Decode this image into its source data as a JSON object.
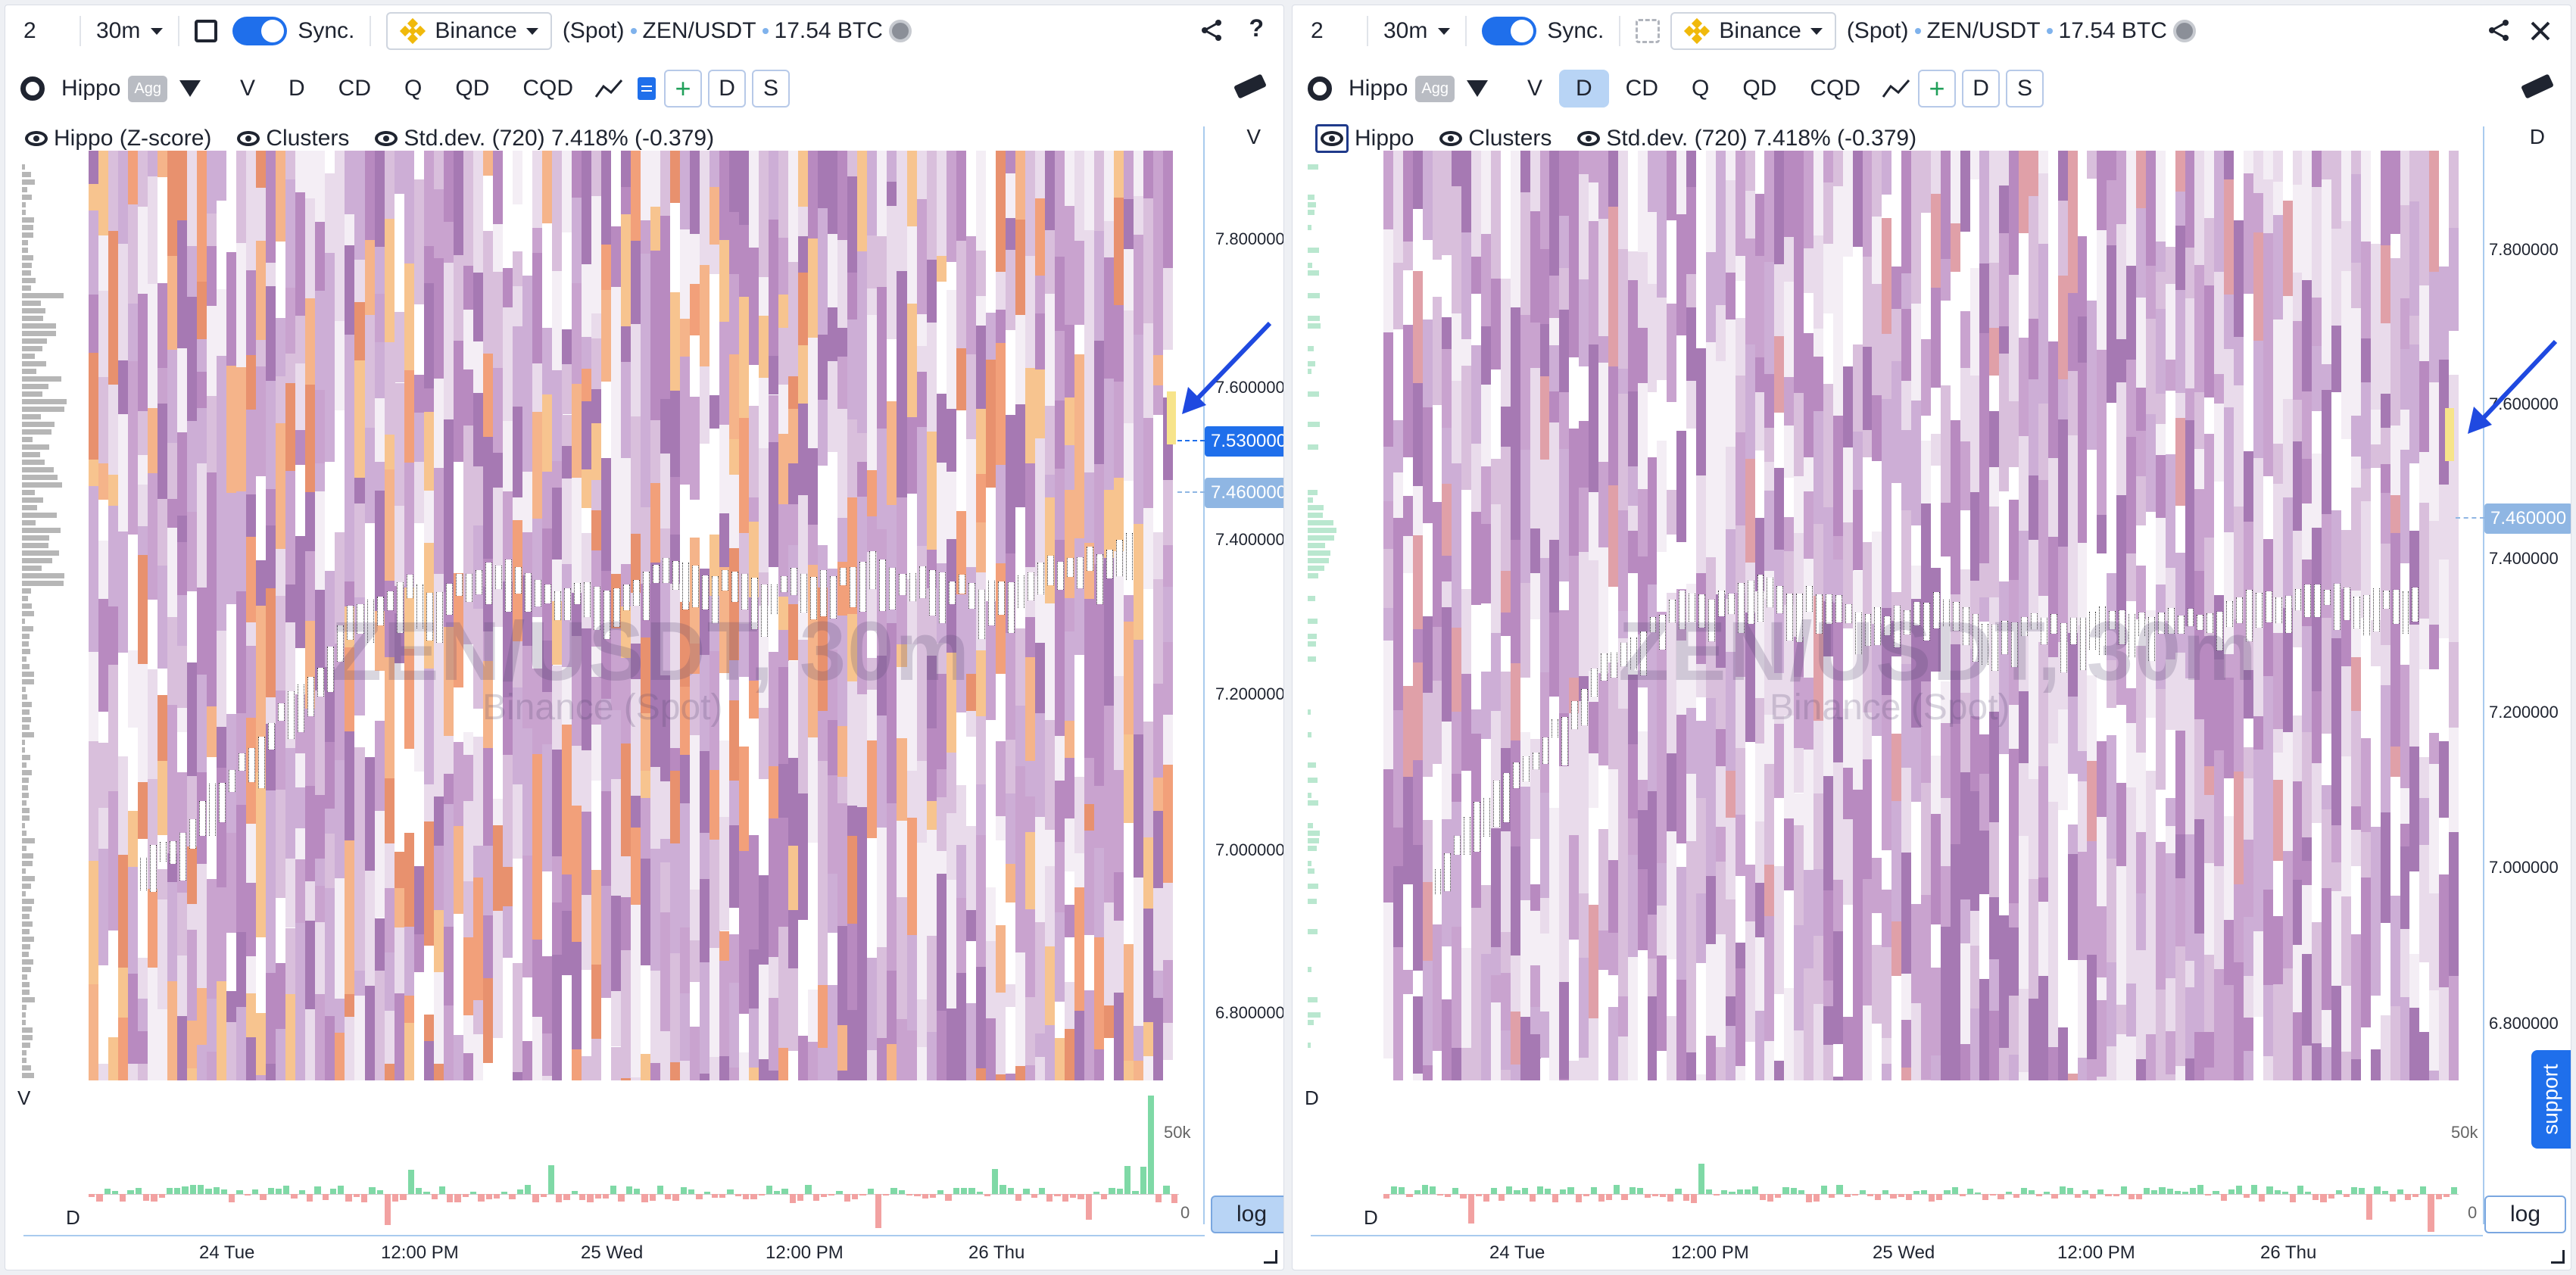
{
  "colors": {
    "accent": "#1f6feb",
    "binance": "#f0b90b",
    "price_tag_current": "#1f6feb",
    "price_tag_alt": "#8fb6e3",
    "volume_up": "#7fd9a6",
    "volume_down": "#f2a1a1"
  },
  "left": {
    "tabs_num": "2",
    "timeframe": "30m",
    "sync_label": "Sync.",
    "exchange": "Binance",
    "market": "(Spot)",
    "pair": "ZEN/USDT",
    "volume": "17.54 BTC",
    "indicator": "Hippo",
    "agg": "Agg",
    "tabs": [
      "V",
      "D",
      "CD",
      "Q",
      "QD",
      "CQD"
    ],
    "active_tab": "",
    "btn_d": "D",
    "btn_s": "S",
    "legend": {
      "hippo": "Hippo (Z-score)",
      "clusters": "Clusters",
      "stddev": "Std.dev. (720) 7.418% (-0.379)"
    },
    "axis_corner": "V",
    "price_ticks": [
      "7.800000",
      "7.600000",
      "7.400000",
      "7.200000",
      "7.000000",
      "6.800000"
    ],
    "price_tag_current": "7.530000",
    "price_tag_alt": "7.460000",
    "watermark": "ZEN/USDT, 30m",
    "watermark_sub": "Binance (Spot)",
    "vol_top_label": "V",
    "vol_bottom_label": "D",
    "vol_ticks": [
      "50k",
      "0"
    ],
    "log_label": "log",
    "time_ticks": [
      "24 Tue",
      "12:00 PM",
      "25 Wed",
      "12:00 PM",
      "26 Thu"
    ]
  },
  "right": {
    "tabs_num": "2",
    "timeframe": "30m",
    "sync_label": "Sync.",
    "exchange": "Binance",
    "market": "(Spot)",
    "pair": "ZEN/USDT",
    "volume": "17.54 BTC",
    "indicator": "Hippo",
    "agg": "Agg",
    "tabs": [
      "V",
      "D",
      "CD",
      "Q",
      "QD",
      "CQD"
    ],
    "active_tab": "D",
    "btn_d": "D",
    "btn_s": "S",
    "legend": {
      "hippo": "Hippo",
      "clusters": "Clusters",
      "stddev": "Std.dev. (720) 7.418% (-0.379)"
    },
    "axis_corner": "D",
    "price_ticks": [
      "7.800000",
      "7.600000",
      "7.400000",
      "7.200000",
      "7.000000",
      "6.800000"
    ],
    "price_tag_alt": "7.460000",
    "watermark": "ZEN/USDT, 30m",
    "watermark_sub": "Binance (Spot)",
    "vol_top_label": "D",
    "vol_bottom_label": "D",
    "vol_ticks": [
      "50k",
      "0"
    ],
    "log_label": "log",
    "time_ticks": [
      "24 Tue",
      "12:00 PM",
      "25 Wed",
      "12:00 PM",
      "26 Thu"
    ],
    "support_label": "support"
  }
}
